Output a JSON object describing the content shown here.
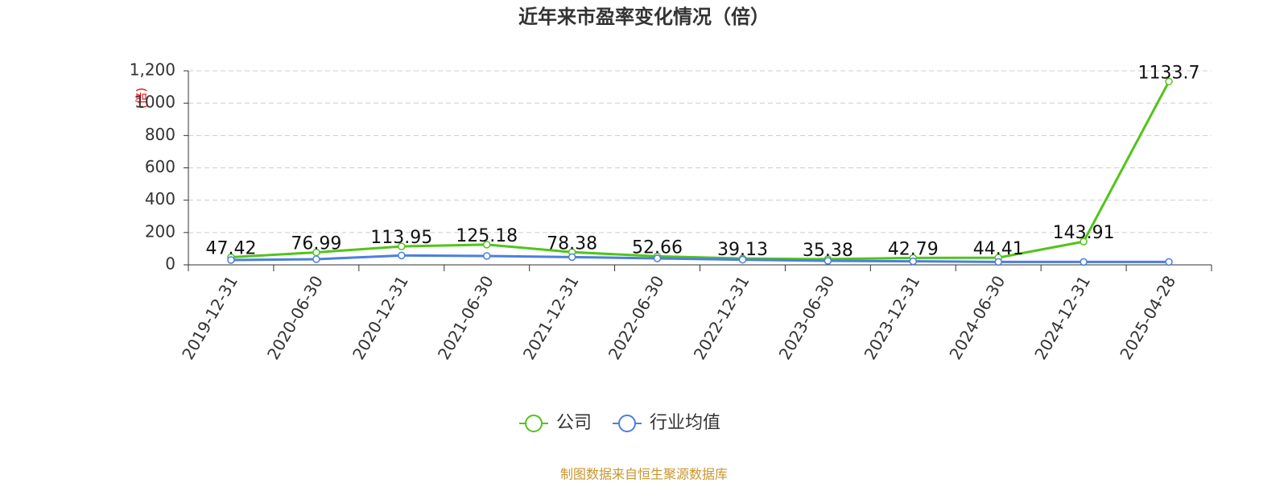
{
  "chart_data": {
    "type": "line",
    "title": "近年来市盈率变化情况（倍）",
    "ylabel": "(倍)",
    "categories": [
      "2019-12-31",
      "2020-06-30",
      "2020-12-31",
      "2021-06-30",
      "2021-12-31",
      "2022-06-30",
      "2022-12-31",
      "2023-06-30",
      "2023-12-31",
      "2024-06-30",
      "2024-12-31",
      "2025-04-28"
    ],
    "series": [
      {
        "name": "公司",
        "color": "#52c41a",
        "values": [
          47.42,
          76.99,
          113.95,
          125.18,
          78.38,
          52.66,
          39.13,
          35.38,
          42.79,
          44.41,
          143.91,
          1133.7
        ],
        "show_labels": true
      },
      {
        "name": "行业均值",
        "color": "#4a7fe0",
        "values": [
          30,
          35,
          58,
          55,
          48,
          40,
          32,
          25,
          22,
          18,
          18,
          18
        ],
        "show_labels": false
      }
    ],
    "ylim": [
      0,
      1200
    ],
    "yticks": [
      0,
      200,
      400,
      600,
      800,
      1000,
      {
        "value": 1200,
        "label": "1,200"
      }
    ],
    "grid": true,
    "legend": "bottom",
    "source": "制图数据来自恒生聚源数据库"
  }
}
